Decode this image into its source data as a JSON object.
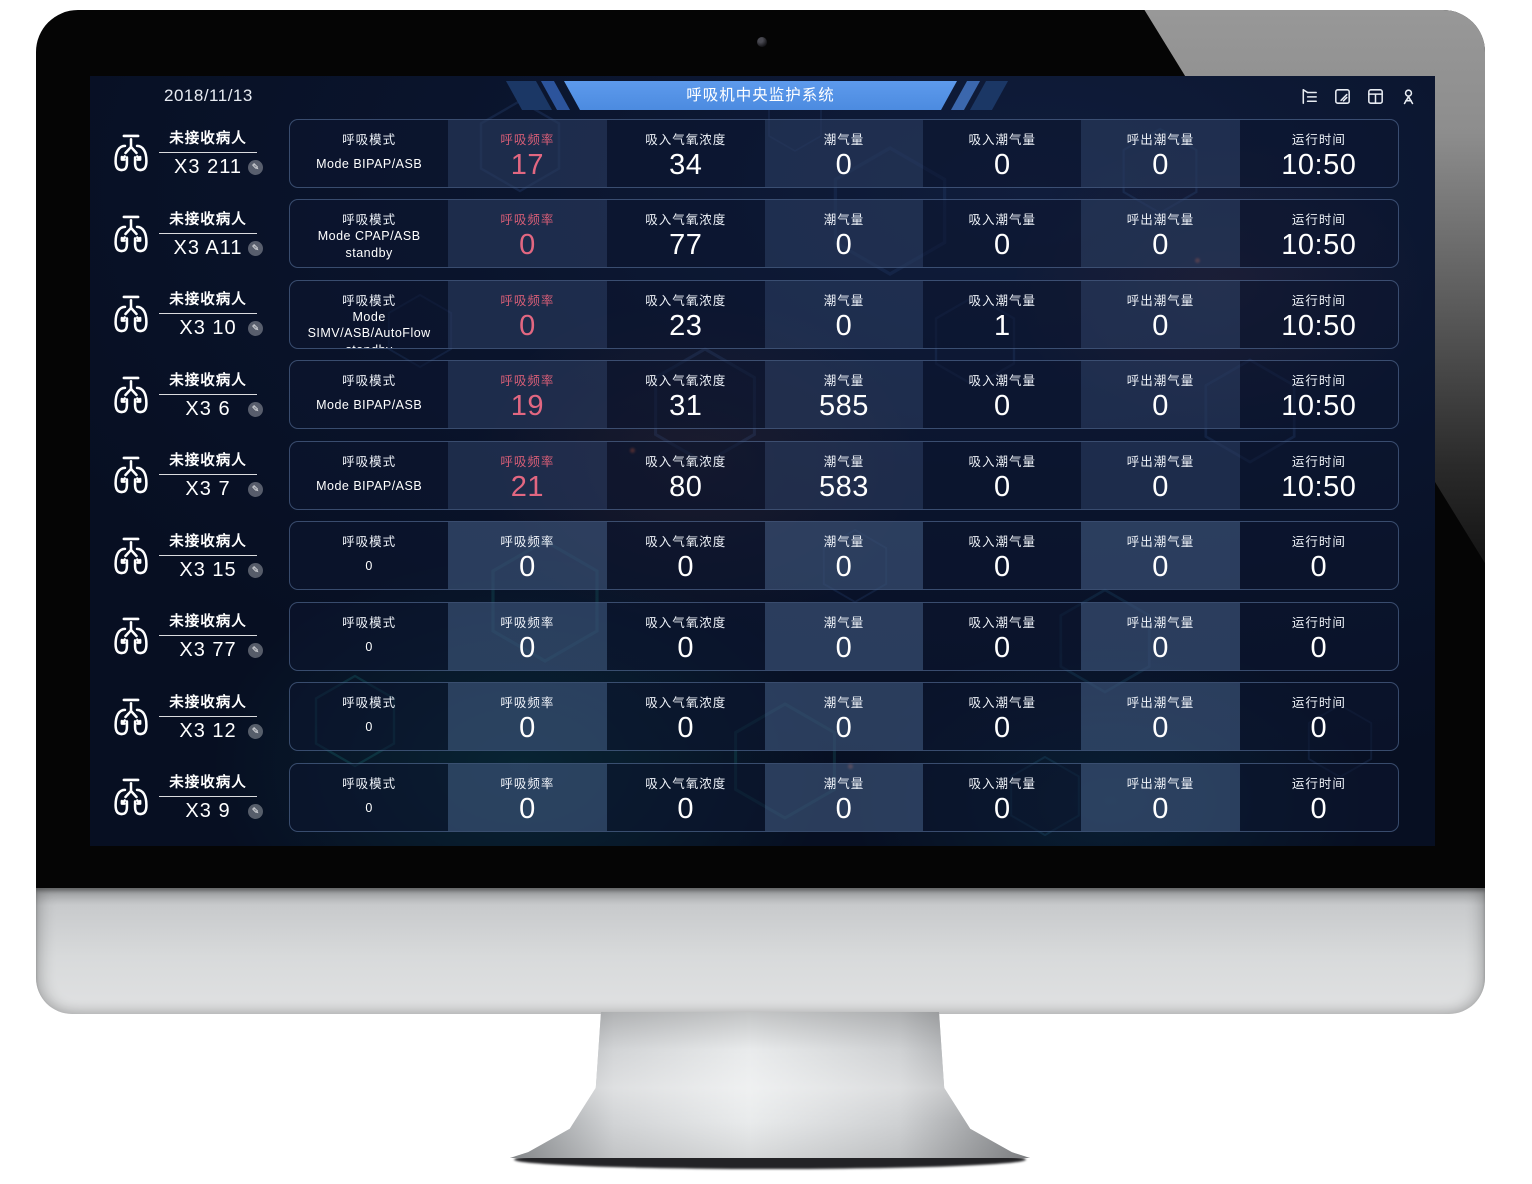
{
  "topbar": {
    "date": "2018/11/13",
    "title": "呼吸机中央监护系统",
    "icons": [
      "collapse-menu-icon",
      "edit-note-icon",
      "layout-panel-icon",
      "user-icon"
    ]
  },
  "columns": [
    {
      "key": "mode",
      "label": "呼吸模式"
    },
    {
      "key": "rr",
      "label": "呼吸频率"
    },
    {
      "key": "fio2",
      "label": "吸入气氧浓度"
    },
    {
      "key": "vt",
      "label": "潮气量"
    },
    {
      "key": "vti",
      "label": "吸入潮气量"
    },
    {
      "key": "vte",
      "label": "呼出潮气量"
    },
    {
      "key": "time",
      "label": "运行时间"
    }
  ],
  "patients": [
    {
      "bed": "X3 211",
      "status": "未接收病人",
      "state": "alarm",
      "values": {
        "mode": "Mode BIPAP/ASB",
        "rr": "17",
        "fio2": "34",
        "vt": "0",
        "vti": "0",
        "vte": "0",
        "time": "10:50"
      }
    },
    {
      "bed": "X3 A11",
      "status": "未接收病人",
      "state": "active",
      "values": {
        "mode": "Mode CPAP/ASB standby",
        "rr": "0",
        "fio2": "77",
        "vt": "0",
        "vti": "0",
        "vte": "0",
        "time": "10:50"
      }
    },
    {
      "bed": "X3 10",
      "status": "未接收病人",
      "state": "active",
      "values": {
        "mode": "Mode SIMV/ASB/AutoFlow standby",
        "rr": "0",
        "fio2": "23",
        "vt": "0",
        "vti": "1",
        "vte": "0",
        "time": "10:50"
      }
    },
    {
      "bed": "X3 6",
      "status": "未接收病人",
      "state": "active",
      "values": {
        "mode": "Mode BIPAP/ASB",
        "rr": "19",
        "fio2": "31",
        "vt": "585",
        "vti": "0",
        "vte": "0",
        "time": "10:50"
      }
    },
    {
      "bed": "X3 7",
      "status": "未接收病人",
      "state": "active",
      "values": {
        "mode": "Mode BIPAP/ASB",
        "rr": "21",
        "fio2": "80",
        "vt": "583",
        "vti": "0",
        "vte": "0",
        "time": "10:50"
      }
    },
    {
      "bed": "X3 15",
      "status": "未接收病人",
      "state": "inactive",
      "values": {
        "mode": "0",
        "rr": "0",
        "fio2": "0",
        "vt": "0",
        "vti": "0",
        "vte": "0",
        "time": "0"
      }
    },
    {
      "bed": "X3 77",
      "status": "未接收病人",
      "state": "inactive",
      "values": {
        "mode": "0",
        "rr": "0",
        "fio2": "0",
        "vt": "0",
        "vti": "0",
        "vte": "0",
        "time": "0"
      }
    },
    {
      "bed": "X3 12",
      "status": "未接收病人",
      "state": "inactive",
      "values": {
        "mode": "0",
        "rr": "0",
        "fio2": "0",
        "vt": "0",
        "vti": "0",
        "vte": "0",
        "time": "0"
      }
    },
    {
      "bed": "X3 9",
      "status": "未接收病人",
      "state": "inactive",
      "values": {
        "mode": "0",
        "rr": "0",
        "fio2": "0",
        "vt": "0",
        "vti": "0",
        "vte": "0",
        "time": "0"
      }
    }
  ],
  "colors": {
    "alarm_card": "#dd6e8b",
    "active_card": "#4a90e2",
    "inactive_card": "#8e8e8e",
    "accent_pink": "#e26781",
    "banner_blue": "#5591e6",
    "screen_bg": "#0a142c"
  }
}
